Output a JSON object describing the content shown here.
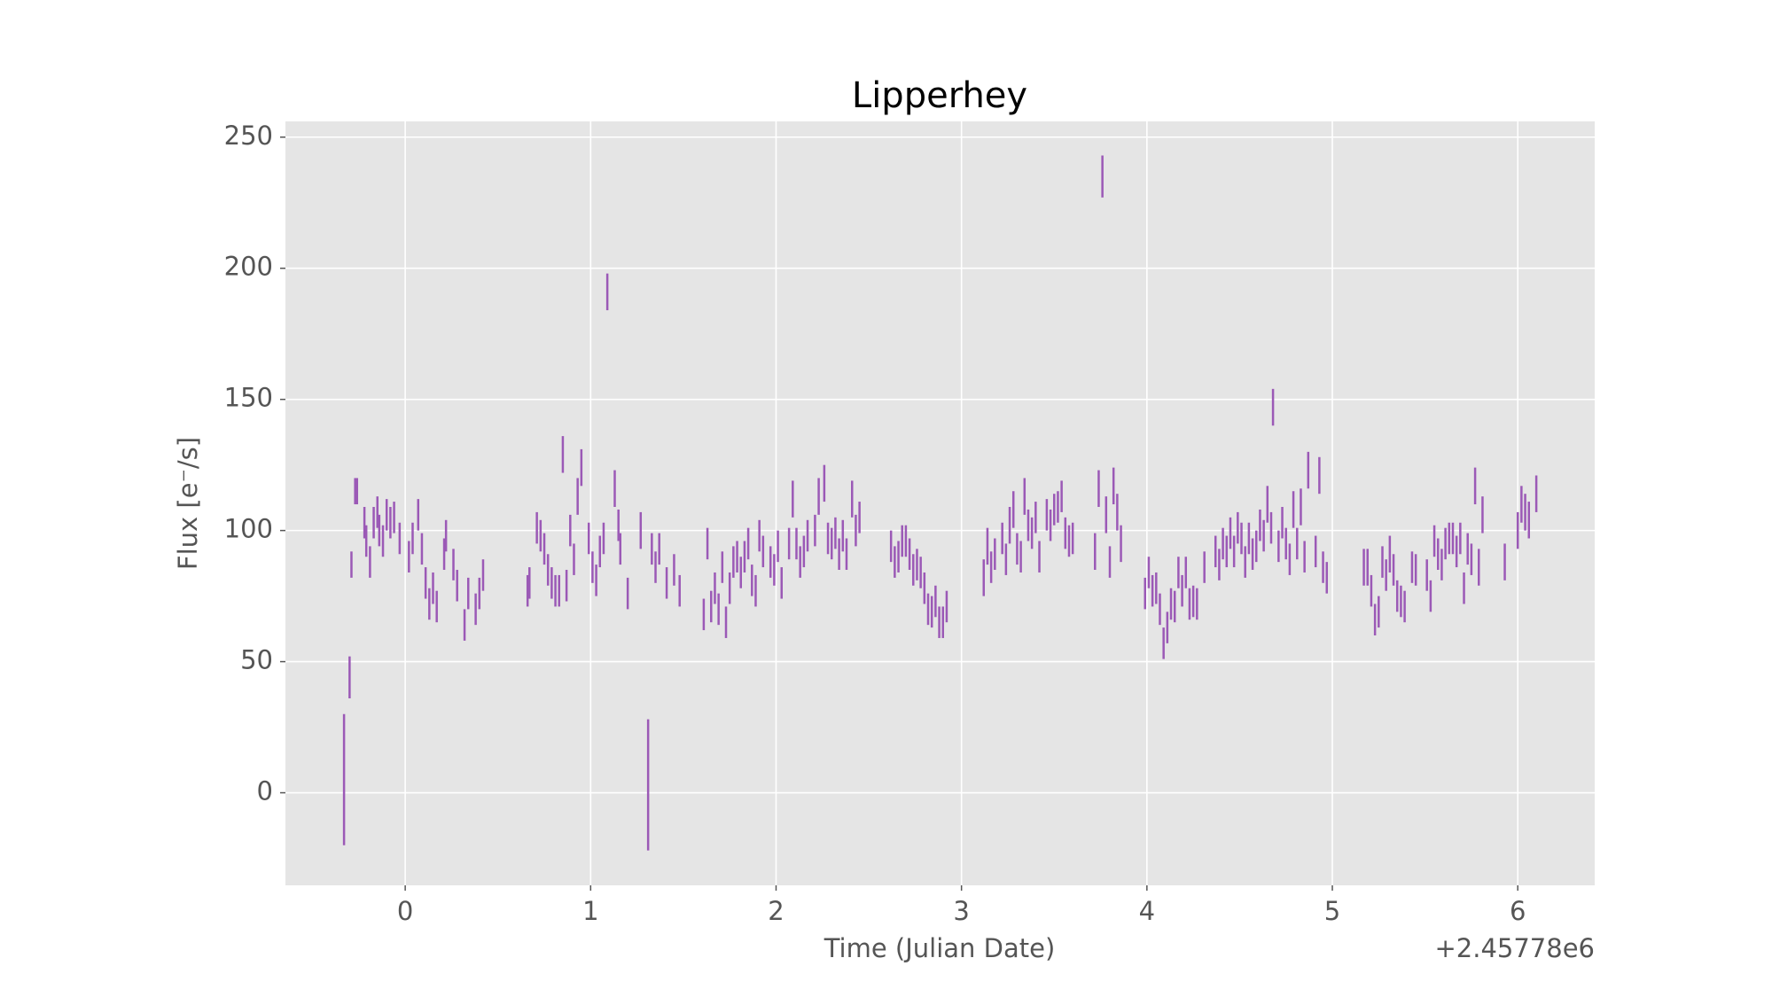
{
  "chart_data": {
    "type": "errorbar",
    "title": "Lipperhey",
    "x_label": "Time (Julian Date)",
    "y_label": "Flux [e⁻/s]",
    "x_offset_label": "+2.45778e6",
    "color": "#9b59b6",
    "grid": true,
    "xlim": [
      -0.646,
      6.415
    ],
    "xticks": [
      0,
      1,
      2,
      3,
      4,
      5,
      6
    ],
    "ylim": [
      -35.3,
      256
    ],
    "yticks": [
      0,
      50,
      100,
      150,
      200,
      250
    ],
    "x": [
      -0.33,
      -0.3,
      -0.29,
      -0.27,
      -0.26,
      -0.22,
      -0.21,
      -0.19,
      -0.17,
      -0.15,
      -0.14,
      -0.12,
      -0.1,
      -0.08,
      -0.06,
      -0.03,
      0.02,
      0.04,
      0.07,
      0.09,
      0.11,
      0.13,
      0.15,
      0.17,
      0.21,
      0.22,
      0.26,
      0.28,
      0.32,
      0.34,
      0.38,
      0.4,
      0.42,
      0.66,
      0.67,
      0.71,
      0.73,
      0.75,
      0.77,
      0.79,
      0.81,
      0.83,
      0.85,
      0.87,
      0.89,
      0.91,
      0.93,
      0.95,
      0.99,
      1.01,
      1.03,
      1.05,
      1.07,
      1.09,
      1.13,
      1.15,
      1.16,
      1.2,
      1.27,
      1.31,
      1.33,
      1.35,
      1.37,
      1.41,
      1.45,
      1.48,
      1.61,
      1.63,
      1.65,
      1.67,
      1.69,
      1.71,
      1.73,
      1.75,
      1.77,
      1.79,
      1.81,
      1.83,
      1.85,
      1.87,
      1.89,
      1.91,
      1.93,
      1.97,
      1.99,
      2.01,
      2.03,
      2.07,
      2.09,
      2.11,
      2.13,
      2.15,
      2.17,
      2.21,
      2.23,
      2.26,
      2.28,
      2.3,
      2.32,
      2.34,
      2.36,
      2.38,
      2.41,
      2.43,
      2.45,
      2.62,
      2.64,
      2.66,
      2.68,
      2.7,
      2.72,
      2.74,
      2.76,
      2.78,
      2.8,
      2.82,
      2.84,
      2.86,
      2.88,
      2.9,
      2.92,
      3.12,
      3.14,
      3.16,
      3.18,
      3.22,
      3.24,
      3.26,
      3.28,
      3.3,
      3.32,
      3.34,
      3.36,
      3.38,
      3.4,
      3.42,
      3.46,
      3.48,
      3.5,
      3.52,
      3.54,
      3.56,
      3.58,
      3.6,
      3.72,
      3.74,
      3.76,
      3.78,
      3.8,
      3.82,
      3.84,
      3.86,
      3.99,
      4.01,
      4.03,
      4.05,
      4.07,
      4.09,
      4.11,
      4.13,
      4.15,
      4.17,
      4.19,
      4.21,
      4.23,
      4.25,
      4.27,
      4.31,
      4.37,
      4.39,
      4.41,
      4.43,
      4.45,
      4.47,
      4.49,
      4.51,
      4.53,
      4.55,
      4.57,
      4.59,
      4.61,
      4.63,
      4.65,
      4.67,
      4.68,
      4.71,
      4.73,
      4.75,
      4.77,
      4.79,
      4.81,
      4.83,
      4.85,
      4.87,
      4.91,
      4.93,
      4.95,
      4.97,
      5.17,
      5.19,
      5.21,
      5.23,
      5.25,
      5.27,
      5.29,
      5.31,
      5.33,
      5.35,
      5.37,
      5.39,
      5.43,
      5.45,
      5.51,
      5.53,
      5.55,
      5.57,
      5.59,
      5.61,
      5.63,
      5.65,
      5.67,
      5.69,
      5.71,
      5.73,
      5.75,
      5.77,
      5.79,
      5.81,
      5.93,
      6.0,
      6.02,
      6.04,
      6.06,
      6.1
    ],
    "values": [
      5,
      44,
      87,
      115,
      115,
      103,
      96,
      88,
      103,
      107,
      100,
      96,
      106,
      103,
      105,
      97,
      90,
      97,
      106,
      93,
      80,
      72,
      78,
      71,
      91,
      98,
      87,
      79,
      64,
      76,
      70,
      76,
      83,
      77,
      80,
      101,
      98,
      93,
      85,
      80,
      77,
      77,
      129,
      79,
      100,
      89,
      113,
      124,
      97,
      86,
      81,
      92,
      97,
      191,
      116,
      102,
      93,
      76,
      100,
      3,
      93,
      86,
      93,
      80,
      85,
      77,
      68,
      95,
      71,
      78,
      70,
      86,
      65,
      78,
      88,
      90,
      84,
      90,
      95,
      81,
      77,
      98,
      92,
      88,
      85,
      94,
      80,
      95,
      112,
      95,
      88,
      92,
      98,
      100,
      113,
      118,
      97,
      95,
      99,
      91,
      98,
      91,
      112,
      100,
      105,
      94,
      88,
      90,
      96,
      96,
      91,
      85,
      87,
      84,
      78,
      70,
      69,
      73,
      65,
      65,
      71,
      82,
      94,
      86,
      91,
      97,
      89,
      102,
      108,
      93,
      90,
      113,
      102,
      99,
      105,
      90,
      106,
      102,
      108,
      109,
      113,
      99,
      96,
      97,
      92,
      116,
      235,
      106,
      88,
      117,
      107,
      95,
      76,
      84,
      77,
      78,
      70,
      57,
      63,
      72,
      71,
      84,
      77,
      84,
      72,
      73,
      72,
      86,
      92,
      87,
      95,
      92,
      99,
      92,
      101,
      97,
      88,
      97,
      91,
      94,
      102,
      98,
      110,
      101,
      147,
      94,
      103,
      95,
      89,
      108,
      95,
      109,
      90,
      123,
      92,
      121,
      86,
      82,
      86,
      86,
      77,
      66,
      69,
      88,
      83,
      91,
      85,
      75,
      73,
      71,
      86,
      85,
      83,
      75,
      96,
      91,
      87,
      95,
      97,
      97,
      92,
      97,
      78,
      93,
      89,
      117,
      86,
      106,
      88,
      100,
      110,
      107,
      104,
      114
    ],
    "errors": [
      25,
      8,
      5,
      5,
      5,
      6,
      6,
      6,
      6,
      6,
      6,
      6,
      6,
      6,
      6,
      6,
      6,
      6,
      6,
      6,
      6,
      6,
      6,
      6,
      6,
      6,
      6,
      6,
      6,
      6,
      6,
      6,
      6,
      6,
      6,
      6,
      6,
      6,
      6,
      6,
      6,
      6,
      7,
      6,
      6,
      6,
      7,
      7,
      6,
      6,
      6,
      6,
      6,
      7,
      7,
      6,
      6,
      6,
      7,
      25,
      6,
      6,
      6,
      6,
      6,
      6,
      6,
      6,
      6,
      6,
      6,
      6,
      6,
      6,
      6,
      6,
      6,
      6,
      6,
      6,
      6,
      6,
      6,
      6,
      6,
      6,
      6,
      6,
      7,
      6,
      6,
      6,
      6,
      6,
      7,
      7,
      6,
      6,
      6,
      6,
      6,
      6,
      7,
      6,
      6,
      6,
      6,
      6,
      6,
      6,
      6,
      6,
      6,
      6,
      6,
      6,
      6,
      6,
      6,
      6,
      6,
      7,
      7,
      6,
      6,
      6,
      6,
      7,
      7,
      6,
      6,
      7,
      6,
      6,
      6,
      6,
      6,
      6,
      6,
      6,
      6,
      6,
      6,
      6,
      7,
      7,
      8,
      7,
      6,
      7,
      7,
      7,
      6,
      6,
      6,
      6,
      6,
      6,
      6,
      6,
      6,
      6,
      6,
      6,
      6,
      6,
      6,
      6,
      6,
      6,
      6,
      6,
      6,
      6,
      6,
      6,
      6,
      6,
      6,
      6,
      6,
      6,
      7,
      6,
      7,
      6,
      6,
      6,
      6,
      7,
      6,
      7,
      6,
      7,
      6,
      7,
      6,
      6,
      7,
      7,
      6,
      6,
      6,
      6,
      6,
      7,
      6,
      6,
      6,
      6,
      6,
      6,
      6,
      6,
      6,
      6,
      6,
      6,
      6,
      6,
      6,
      6,
      6,
      6,
      6,
      7,
      7,
      7,
      7,
      7,
      7,
      7,
      7,
      7
    ]
  }
}
